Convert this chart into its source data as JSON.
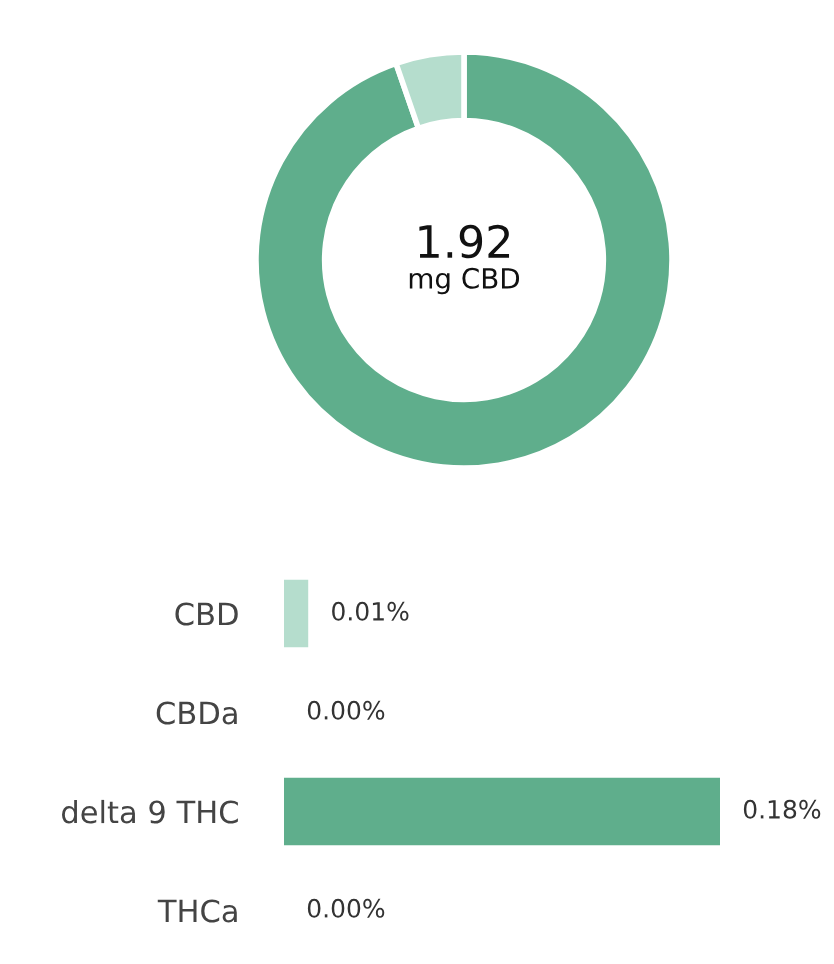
{
  "chart_data": [
    {
      "type": "donut",
      "categories": [
        null,
        null
      ],
      "values": [
        94.7,
        5.3
      ],
      "colors": [
        "#5fae8c",
        "#b5ddcd"
      ],
      "annotations": [
        "1.92",
        "mg CBD"
      ]
    },
    {
      "type": "bar",
      "orientation": "horizontal",
      "categories": [
        "CBD",
        "CBDa",
        "delta 9 THC",
        "THCa"
      ],
      "values": [
        0.01,
        0.0,
        0.18,
        0.0
      ],
      "colors": [
        "#b5ddcd",
        "#5fae8c",
        "#5fae8c",
        "#5fae8c"
      ],
      "value_labels": [
        "0.01%",
        "0.00%",
        "0.18%",
        "0.00%"
      ]
    }
  ]
}
